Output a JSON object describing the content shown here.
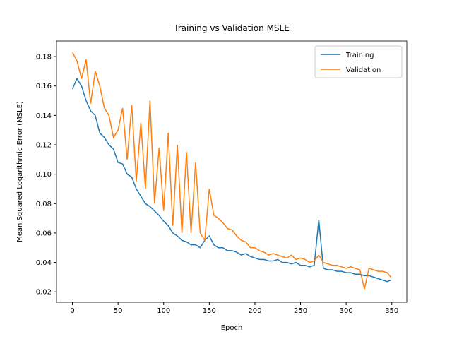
{
  "chart_data": {
    "type": "line",
    "title": "Training vs Validation MSLE",
    "x_label": "Epoch",
    "y_label": "Mean Squared Logarithmic Error (MSLE)",
    "x": [
      0,
      5,
      10,
      15,
      20,
      25,
      30,
      35,
      40,
      45,
      50,
      55,
      60,
      65,
      70,
      75,
      80,
      85,
      90,
      95,
      100,
      105,
      110,
      115,
      120,
      125,
      130,
      135,
      140,
      145,
      150,
      155,
      160,
      165,
      170,
      175,
      180,
      185,
      190,
      195,
      200,
      205,
      210,
      215,
      220,
      225,
      230,
      235,
      240,
      245,
      250,
      255,
      260,
      265,
      270,
      275,
      280,
      285,
      290,
      295,
      300,
      305,
      310,
      315,
      320,
      325,
      330,
      335,
      340,
      345,
      349
    ],
    "series": [
      {
        "name": "Training",
        "color": "#1f77b4",
        "values": [
          0.158,
          0.165,
          0.16,
          0.15,
          0.143,
          0.14,
          0.128,
          0.125,
          0.12,
          0.117,
          0.108,
          0.107,
          0.1,
          0.098,
          0.09,
          0.085,
          0.08,
          0.078,
          0.075,
          0.072,
          0.068,
          0.065,
          0.06,
          0.058,
          0.055,
          0.054,
          0.052,
          0.052,
          0.05,
          0.055,
          0.058,
          0.052,
          0.05,
          0.05,
          0.048,
          0.048,
          0.047,
          0.045,
          0.046,
          0.044,
          0.043,
          0.042,
          0.042,
          0.041,
          0.041,
          0.042,
          0.04,
          0.04,
          0.039,
          0.04,
          0.038,
          0.038,
          0.037,
          0.038,
          0.069,
          0.036,
          0.035,
          0.035,
          0.034,
          0.034,
          0.033,
          0.033,
          0.032,
          0.032,
          0.031,
          0.031,
          0.03,
          0.029,
          0.028,
          0.027,
          0.028
        ]
      },
      {
        "name": "Validation",
        "color": "#ff7f0e",
        "values": [
          0.183,
          0.177,
          0.165,
          0.178,
          0.148,
          0.17,
          0.16,
          0.145,
          0.14,
          0.125,
          0.13,
          0.145,
          0.11,
          0.147,
          0.095,
          0.135,
          0.09,
          0.15,
          0.08,
          0.118,
          0.075,
          0.128,
          0.065,
          0.12,
          0.06,
          0.115,
          0.06,
          0.108,
          0.06,
          0.055,
          0.09,
          0.072,
          0.07,
          0.067,
          0.063,
          0.062,
          0.058,
          0.055,
          0.054,
          0.05,
          0.05,
          0.048,
          0.047,
          0.045,
          0.046,
          0.045,
          0.044,
          0.043,
          0.045,
          0.042,
          0.043,
          0.042,
          0.04,
          0.041,
          0.045,
          0.04,
          0.039,
          0.038,
          0.038,
          0.037,
          0.036,
          0.037,
          0.036,
          0.035,
          0.022,
          0.036,
          0.035,
          0.034,
          0.034,
          0.033,
          0.03
        ]
      }
    ],
    "xlim": [
      -17.45,
      366.45
    ],
    "xticks": [
      0,
      50,
      100,
      150,
      200,
      250,
      300,
      350
    ],
    "ylim": [
      0.0129,
      0.1906
    ],
    "yticks": [
      0.02,
      0.04,
      0.06,
      0.08,
      {
        "value": 0.1,
        "label": "0.10"
      },
      0.12,
      0.14,
      0.16,
      0.18
    ],
    "legend": "upper right",
    "grid": false
  }
}
